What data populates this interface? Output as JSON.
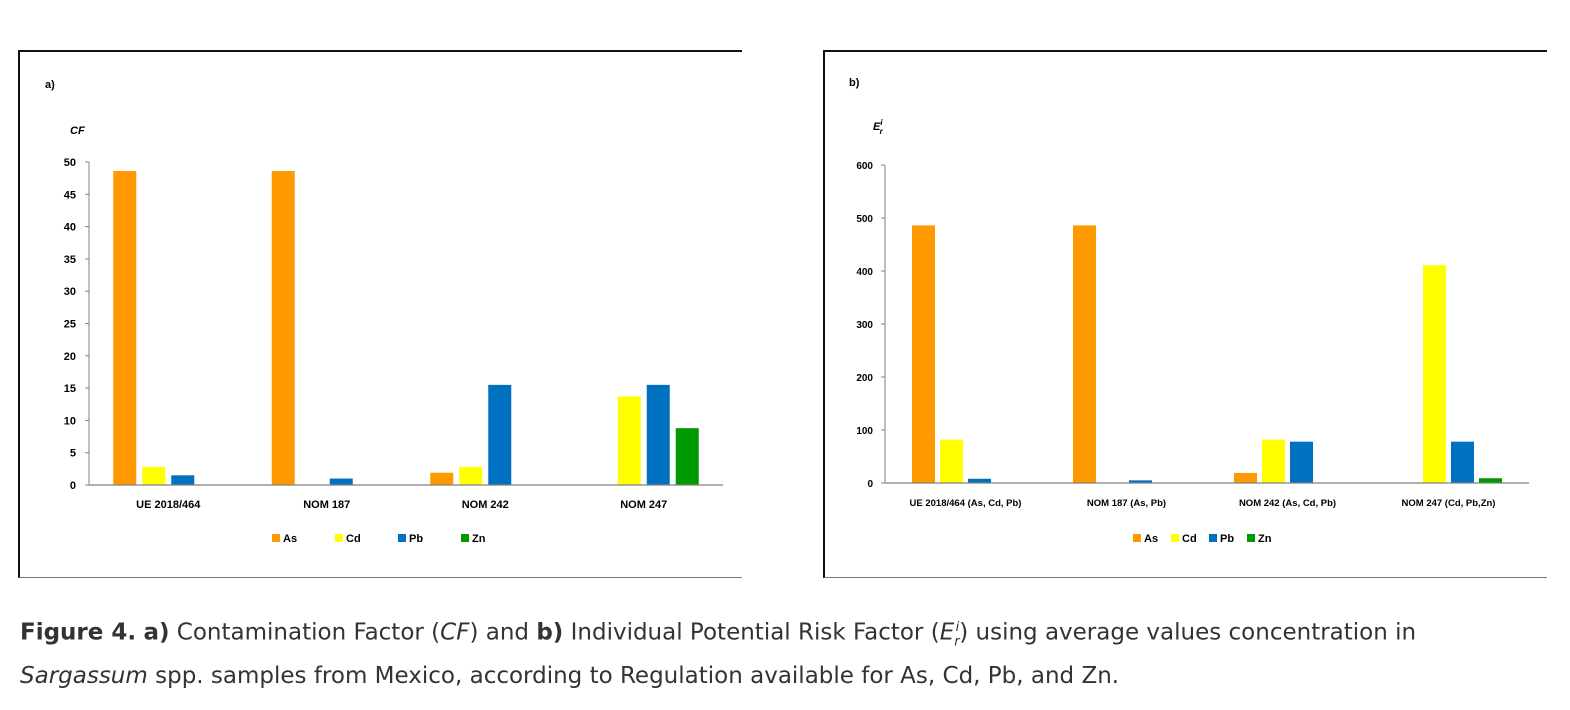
{
  "charts": [
    {
      "panel_label": "a)",
      "ylabel": "CF",
      "ylabel_sub": "",
      "ylabel_sup": ""
    },
    {
      "panel_label": "b)",
      "ylabel": "E",
      "ylabel_sub": "r",
      "ylabel_sup": "i"
    }
  ],
  "chart_data": [
    {
      "type": "bar",
      "title": "a)",
      "ylabel": "CF",
      "xlabel": "",
      "ylim": [
        0,
        50
      ],
      "yticks": [
        0,
        5,
        10,
        15,
        20,
        25,
        30,
        35,
        40,
        45,
        50
      ],
      "categories": [
        "UE 2018/464",
        "NOM 187",
        "NOM 242",
        "NOM 247"
      ],
      "series": [
        {
          "name": "As",
          "color": "#ff9900",
          "values": [
            48.6,
            48.6,
            1.9,
            0
          ]
        },
        {
          "name": "Cd",
          "color": "#ffff00",
          "values": [
            2.8,
            0,
            2.8,
            13.7
          ]
        },
        {
          "name": "Pb",
          "color": "#0070c0",
          "values": [
            1.5,
            1.0,
            15.5,
            15.5
          ]
        },
        {
          "name": "Zn",
          "color": "#009900",
          "values": [
            0,
            0,
            0,
            8.8
          ]
        }
      ],
      "legend": "bottom-center"
    },
    {
      "type": "bar",
      "title": "b)",
      "ylabel": "Eri",
      "xlabel": "",
      "ylim": [
        0,
        600
      ],
      "yticks": [
        0,
        100,
        200,
        300,
        400,
        500,
        600
      ],
      "categories": [
        "UE 2018/464 (As, Cd, Pb)",
        "NOM 187 (As, Pb)",
        "NOM 242 (As, Cd, Pb)",
        "NOM 247 (Cd, Pb,Zn)"
      ],
      "series": [
        {
          "name": "As",
          "color": "#ff9900",
          "values": [
            486,
            486,
            19,
            0
          ]
        },
        {
          "name": "Cd",
          "color": "#ffff00",
          "values": [
            82,
            0,
            82,
            411
          ]
        },
        {
          "name": "Pb",
          "color": "#0070c0",
          "values": [
            8,
            5,
            78,
            78
          ]
        },
        {
          "name": "Zn",
          "color": "#009900",
          "values": [
            0,
            0,
            0,
            9
          ]
        }
      ],
      "legend": "bottom-center"
    }
  ],
  "caption": {
    "fig_label": "Figure 4.",
    "a_label": "a)",
    "text1": " Contamination Factor (",
    "cf": "CF",
    "text2": ") and ",
    "b_label": "b)",
    "text3": " Individual Potential Risk Factor (",
    "e": "E",
    "e_sub": "r",
    "e_sup": "i",
    "text4": ") using average values concentration in ",
    "sargassum": "Sargassum",
    "text5": " spp. samples from Mexico, according to Regulation available for As, Cd, Pb, and Zn."
  }
}
